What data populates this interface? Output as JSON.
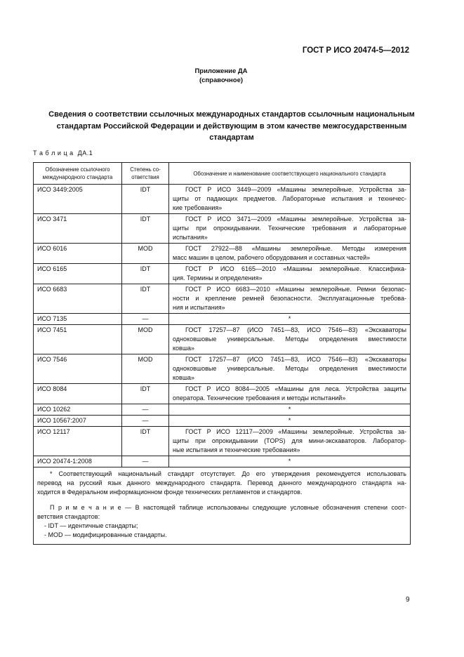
{
  "header": {
    "doc_id": "ГОСТ Р ИСО 20474-5—2012"
  },
  "annex": {
    "title": "Приложение ДА",
    "subtitle": "(справочное)"
  },
  "title_lines": [
    "Сведения о соответствии ссылочных международных стандартов ссылочным национальным",
    "стандартам Российской Федерации и действующим в этом качестве межгосударственным",
    "стандартам"
  ],
  "table": {
    "caption": "Т а б л и ц а  ДА.1",
    "headers": [
      "Обозначение ссылочного международного стандарта",
      "Степень со-ответствия",
      "Обозначение и наименование соответствующего национального стандарта"
    ],
    "rows": [
      {
        "iso": "ИСО 3449:2005",
        "degree": "IDT",
        "lines": [
          "ГОСТ Р ИСО 3449—2009 «Машины землеройные. Устройства за-",
          "щиты от падающих предметов. Лабораторные испытания и техничес-",
          "кие требования»"
        ]
      },
      {
        "iso": "ИСО 3471",
        "degree": "IDT",
        "lines": [
          "ГОСТ Р ИСО 3471—2009 «Машины землеройные. Устройства за-",
          "щиты при опрокидывании. Технические требования и лабораторные",
          "испытания»"
        ]
      },
      {
        "iso": "ИСО 6016",
        "degree": "MOD",
        "lines": [
          "ГОСТ 27922—88 «Машины землеройные. Методы измерения",
          "масс машин в целом, рабочего оборудования и составных частей»"
        ]
      },
      {
        "iso": "ИСО 6165",
        "degree": "IDT",
        "lines": [
          "ГОСТ Р ИСО 6165—2010 «Машины землеройные. Классифика-",
          "ция. Термины и определения»"
        ]
      },
      {
        "iso": "ИСО 6683",
        "degree": "IDT",
        "lines": [
          "ГОСТ Р ИСО 6683—2010 «Машины землеройные. Ремни безопас-",
          "ности и крепление ремней безопасности. Эксплуатационные требова-",
          "ния и испытания»"
        ]
      },
      {
        "iso": "ИСО 7135",
        "degree": "—",
        "lines": [
          "*"
        ]
      },
      {
        "iso": "ИСО 7451",
        "degree": "MOD",
        "lines": [
          "ГОСТ 17257—87 (ИСО 7451—83, ИСО 7546—83) «Экскаваторы",
          "одноковшовые универсальные. Методы определения вместимости",
          "ковша»"
        ]
      },
      {
        "iso": "ИСО 7546",
        "degree": "MOD",
        "lines": [
          "ГОСТ 17257—87 (ИСО 7451—83, ИСО 7546—83) «Экскаваторы",
          "одноковшовые универсальные. Методы определения вместимости",
          "ковша»"
        ]
      },
      {
        "iso": "ИСО 8084",
        "degree": "IDT",
        "lines": [
          "ГОСТ Р ИСО 8084—2005 «Машины для леса. Устройства защиты",
          "оператора. Технические требования и методы испытаний»"
        ]
      },
      {
        "iso": "ИСО 10262",
        "degree": "—",
        "lines": [
          "*"
        ]
      },
      {
        "iso": "ИСО 10567:2007",
        "degree": "—",
        "lines": [
          "*"
        ]
      },
      {
        "iso": "ИСО 12117",
        "degree": "IDT",
        "lines": [
          "ГОСТ Р ИСО 12117—2009 «Машины землеройные. Устройства за-",
          "щиты при опрокидывании (TOPS) для мини-экскаваторов. Лаборатор-",
          "ные испытания и технические требования»"
        ]
      },
      {
        "iso": "ИСО 20474-1:2008",
        "degree": "—",
        "lines": [
          "*"
        ]
      }
    ],
    "footnote_lines": [
      "* Соответствующий национальный стандарт отсутствует. До его утверждения рекомендуется использовать",
      "перевод на русский язык данного международного стандарта. Перевод данного международного стандарта на-",
      "ходится в Федеральном информационном фонде технических регламентов и стандартов."
    ],
    "note_lines": [
      "П р и м е ч а н и е — В настоящей таблице использованы следующие условные обозначения степени соот-",
      "ветствия стандартов:"
    ],
    "legend": [
      "- IDT — идентичные стандарты;",
      "- MOD — модифицированные стандарты."
    ]
  },
  "page_number": "9"
}
